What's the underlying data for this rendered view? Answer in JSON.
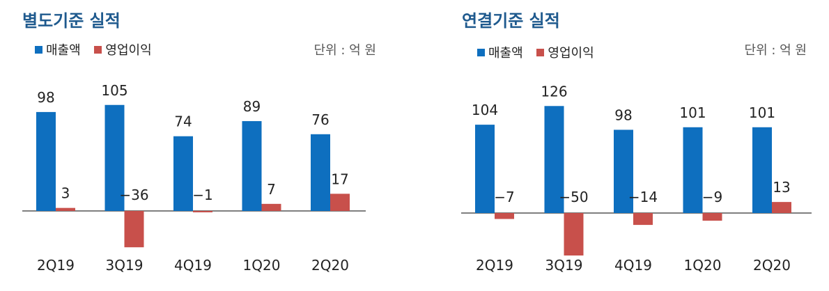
{
  "chart_data": [
    {
      "type": "bar",
      "title": "별도기준 실적",
      "unit_label": "단위 : 억 원",
      "categories": [
        "2Q19",
        "3Q19",
        "4Q19",
        "1Q20",
        "2Q20"
      ],
      "series": [
        {
          "name": "매출액",
          "color": "#0e6fbf",
          "values": [
            98,
            105,
            74,
            89,
            76
          ]
        },
        {
          "name": "영업이익",
          "color": "#c8504b",
          "values": [
            3,
            -36,
            -1,
            7,
            17
          ]
        }
      ],
      "data_labels": {
        "매출액": [
          "98",
          "105",
          "74",
          "89",
          "76"
        ],
        "영업이익": [
          "3",
          "−36",
          "−1",
          "7",
          "17"
        ]
      },
      "legend": "top-left",
      "grid": false
    },
    {
      "type": "bar",
      "title": "연결기준 실적",
      "unit_label": "단위 : 억 원",
      "categories": [
        "2Q19",
        "3Q19",
        "4Q19",
        "1Q20",
        "2Q20"
      ],
      "series": [
        {
          "name": "매출액",
          "color": "#0e6fbf",
          "values": [
            104,
            126,
            98,
            101,
            101
          ]
        },
        {
          "name": "영업이익",
          "color": "#c8504b",
          "values": [
            -7,
            -50,
            -14,
            -9,
            13
          ]
        }
      ],
      "data_labels": {
        "매출액": [
          "104",
          "126",
          "98",
          "101",
          "101"
        ],
        "영업이익": [
          "−7",
          "−50",
          "−14",
          "−9",
          "13"
        ]
      },
      "legend": "top-left",
      "grid": false
    }
  ]
}
